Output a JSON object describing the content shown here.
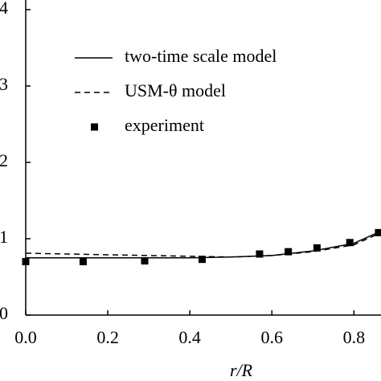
{
  "chart_data": {
    "type": "line",
    "x_label": "r/R",
    "xlim": [
      0,
      0.866
    ],
    "xticks": [
      {
        "value": 0,
        "label": "0.0"
      },
      {
        "value": 0.2,
        "label": "0.2"
      },
      {
        "value": 0.4,
        "label": "0.4"
      },
      {
        "value": 0.6,
        "label": "0.6"
      },
      {
        "value": 0.8,
        "label": "0.8"
      }
    ],
    "ylim": [
      0,
      4.1
    ],
    "yticks": [
      0,
      1,
      2,
      3,
      4
    ],
    "series": [
      {
        "name": "two-time scale model",
        "type": "line",
        "linestyle": "solid",
        "color": "#000000",
        "x": [
          0,
          0.1,
          0.2,
          0.3,
          0.4,
          0.5,
          0.6,
          0.7,
          0.8,
          0.866
        ],
        "values": [
          0.75,
          0.75,
          0.75,
          0.75,
          0.75,
          0.76,
          0.78,
          0.84,
          0.94,
          1.1
        ]
      },
      {
        "name": "USM-θ model",
        "type": "line",
        "linestyle": "dashed",
        "color": "#000000",
        "x": [
          0,
          0.1,
          0.2,
          0.3,
          0.4,
          0.5,
          0.6,
          0.7,
          0.8,
          0.866
        ],
        "values": [
          0.81,
          0.8,
          0.79,
          0.78,
          0.77,
          0.76,
          0.78,
          0.83,
          0.92,
          1.08
        ]
      },
      {
        "name": "experiment",
        "type": "scatter",
        "color": "#000000",
        "x": [
          0,
          0.14,
          0.29,
          0.43,
          0.57,
          0.64,
          0.71,
          0.79,
          0.86
        ],
        "values": [
          0.7,
          0.7,
          0.71,
          0.73,
          0.8,
          0.83,
          0.88,
          0.95,
          1.08
        ]
      }
    ]
  }
}
